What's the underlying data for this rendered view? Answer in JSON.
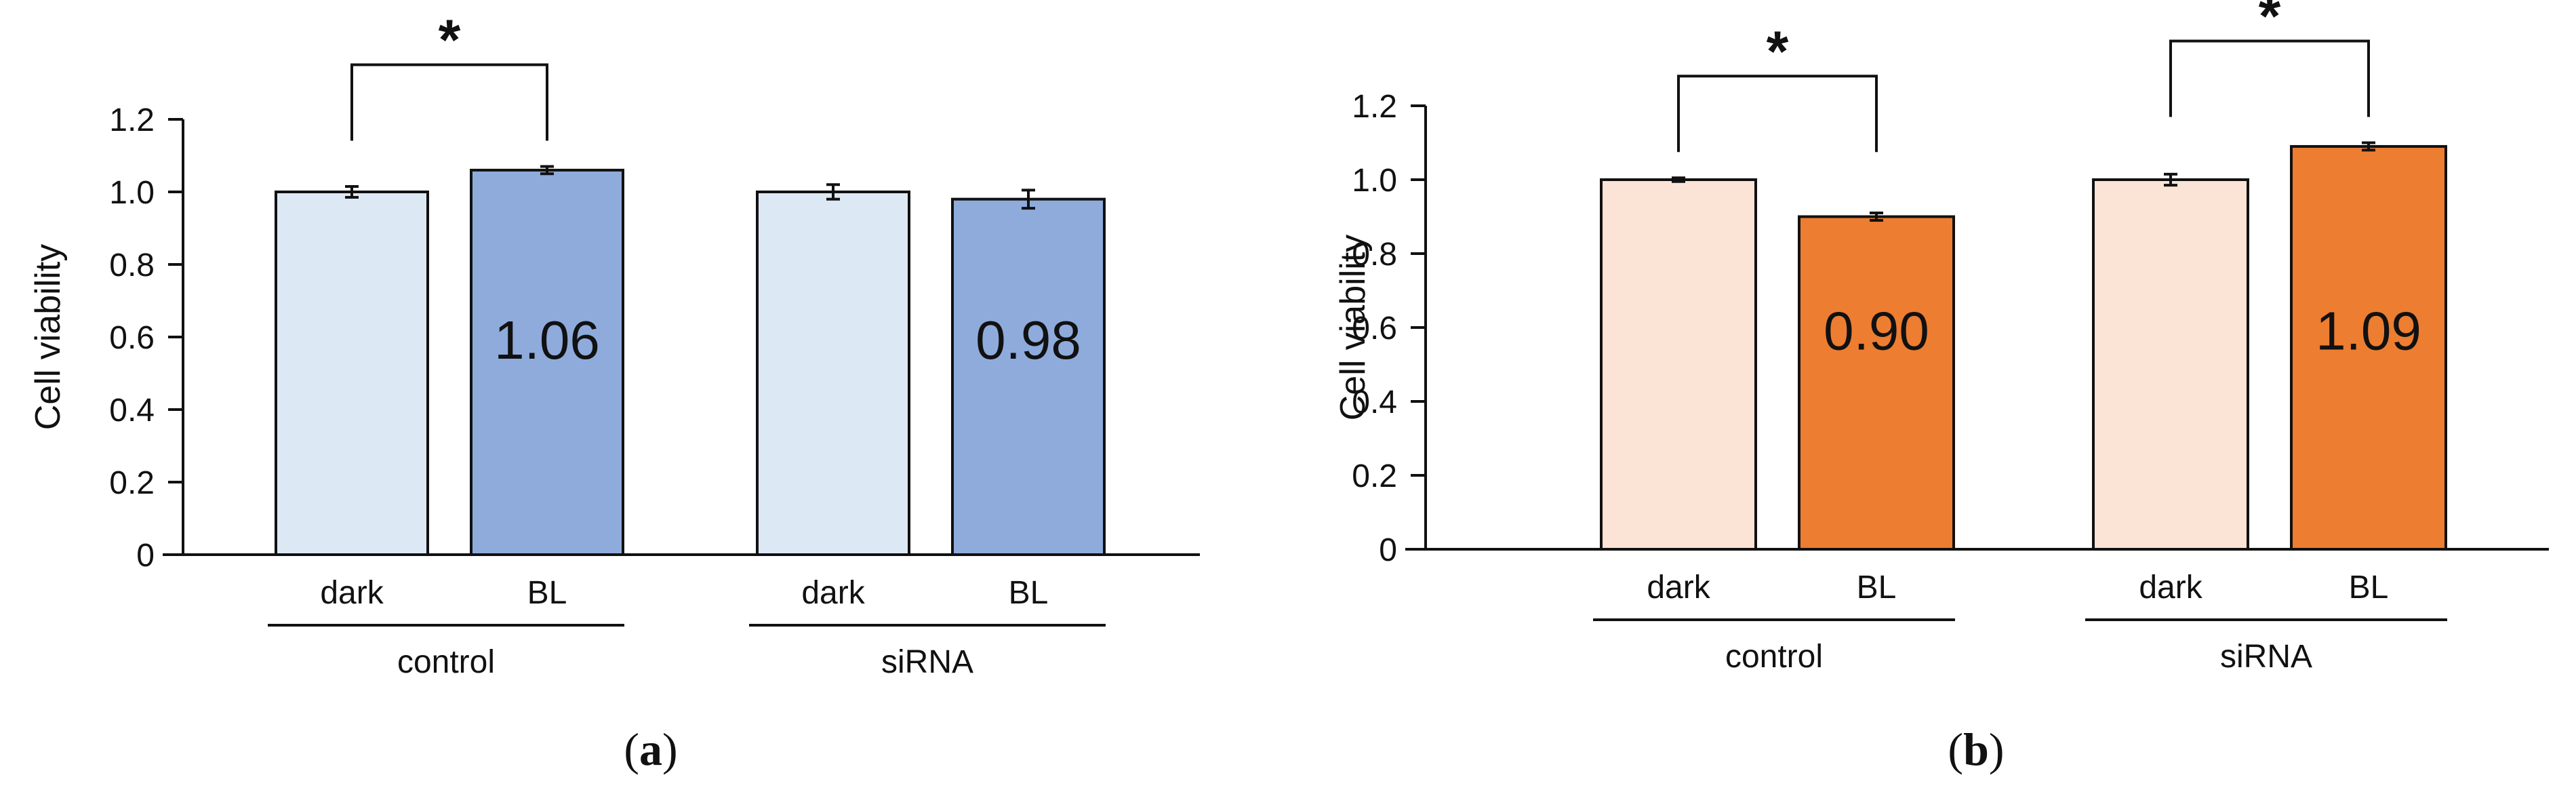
{
  "chart_data": [
    {
      "type": "bar",
      "panel_label": "a",
      "title": "",
      "xlabel": "",
      "ylabel": "Cell viability",
      "ylim": [
        0,
        1.2
      ],
      "yticks": [
        "0",
        "0.2",
        "0.4",
        "0.6",
        "0.8",
        "1.0",
        "1.2"
      ],
      "groups": [
        {
          "name": "control",
          "bars": [
            {
              "label": "dark",
              "value": 1.0,
              "error": 0.015,
              "color": "#dde8f5",
              "data_label": ""
            },
            {
              "label": "BL",
              "value": 1.06,
              "error": 0.01,
              "color": "#8eabdc",
              "data_label": "1.06"
            }
          ],
          "significance": "*"
        },
        {
          "name": "siRNA",
          "bars": [
            {
              "label": "dark",
              "value": 1.0,
              "error": 0.02,
              "color": "#dde8f5",
              "data_label": ""
            },
            {
              "label": "BL",
              "value": 0.98,
              "error": 0.025,
              "color": "#8eabdc",
              "data_label": "0.98"
            }
          ],
          "significance": ""
        }
      ]
    },
    {
      "type": "bar",
      "panel_label": "b",
      "title": "",
      "xlabel": "",
      "ylabel": "Cell viability",
      "ylim": [
        0,
        1.2
      ],
      "yticks": [
        "0",
        "0.2",
        "0.4",
        "0.6",
        "0.8",
        "1.0",
        "1.2"
      ],
      "groups": [
        {
          "name": "control",
          "bars": [
            {
              "label": "dark",
              "value": 1.0,
              "error": 0.005,
              "color": "#fbe4d6",
              "data_label": ""
            },
            {
              "label": "BL",
              "value": 0.9,
              "error": 0.01,
              "color": "#ed7d31",
              "data_label": "0.90"
            }
          ],
          "significance": "*"
        },
        {
          "name": "siRNA",
          "bars": [
            {
              "label": "dark",
              "value": 1.0,
              "error": 0.015,
              "color": "#fbe4d6",
              "data_label": ""
            },
            {
              "label": "BL",
              "value": 1.09,
              "error": 0.01,
              "color": "#ed7d31",
              "data_label": "1.09"
            }
          ],
          "significance": "*"
        }
      ]
    }
  ]
}
